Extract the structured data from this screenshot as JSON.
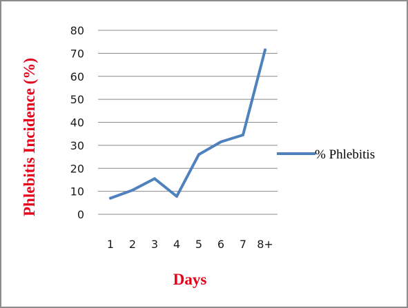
{
  "chart_data": {
    "type": "line",
    "title": "",
    "xlabel": "Days",
    "ylabel": "Phlebitis Incidence (%)",
    "categories": [
      "1",
      "2",
      "3",
      "4",
      "5",
      "6",
      "7",
      "8+"
    ],
    "series": [
      {
        "name": "% Phlebitis",
        "values": [
          7,
          10.5,
          15.5,
          7.8,
          26,
          31.5,
          34.5,
          71.5
        ],
        "color": "#4f81bd"
      }
    ],
    "ylim": [
      0,
      80
    ],
    "yticks": [
      "0",
      "10",
      "20",
      "30",
      "40",
      "50",
      "60",
      "70",
      "80"
    ],
    "grid": true,
    "legend_position": "right",
    "label_color": "#e6001a"
  }
}
